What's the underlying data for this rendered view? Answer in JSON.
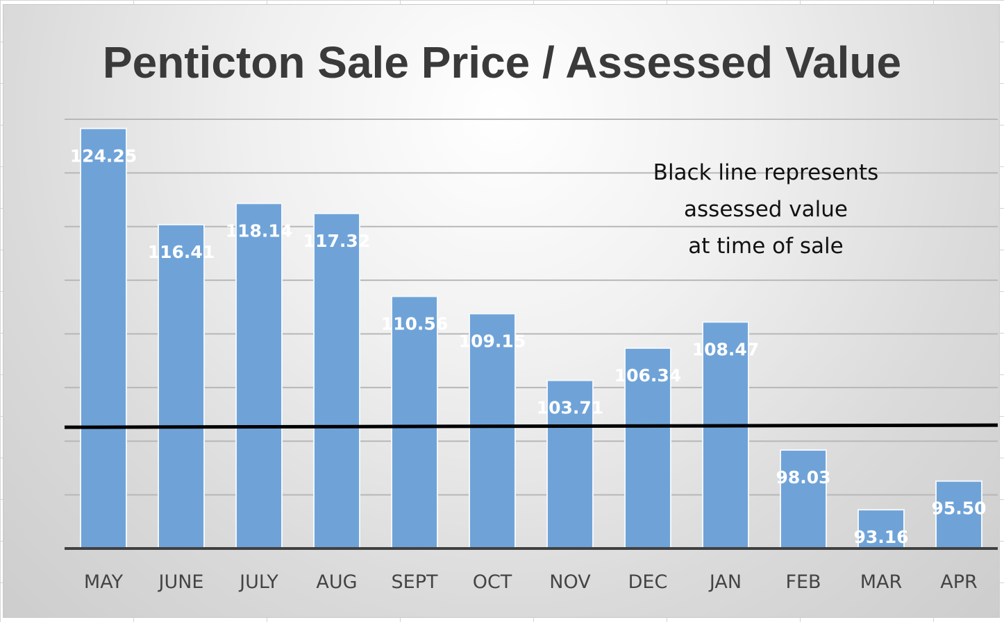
{
  "chart_data": {
    "type": "bar",
    "title": "Penticton Sale Price / Assessed Value",
    "categories": [
      "MAY",
      "JUNE",
      "JULY",
      "AUG",
      "SEPT",
      "OCT",
      "NOV",
      "DEC",
      "JAN",
      "FEB",
      "MAR",
      "APR"
    ],
    "values": [
      124.25,
      116.41,
      118.14,
      117.32,
      110.56,
      109.15,
      103.71,
      106.34,
      108.47,
      98.03,
      93.16,
      95.5
    ],
    "data_labels": [
      "124.25",
      "116.41",
      "118.14",
      "117.32",
      "110.56",
      "109.15",
      "103.71",
      "106.34",
      "108.47",
      "98.03",
      "93.16",
      "95.50"
    ],
    "ylim": [
      90,
      125
    ],
    "reference_line": {
      "value": 100,
      "color": "#000000"
    },
    "annotation": [
      "Black line represents",
      "assessed value",
      "at time of sale"
    ],
    "grid": true,
    "bar_color": "#6fa3d8"
  }
}
